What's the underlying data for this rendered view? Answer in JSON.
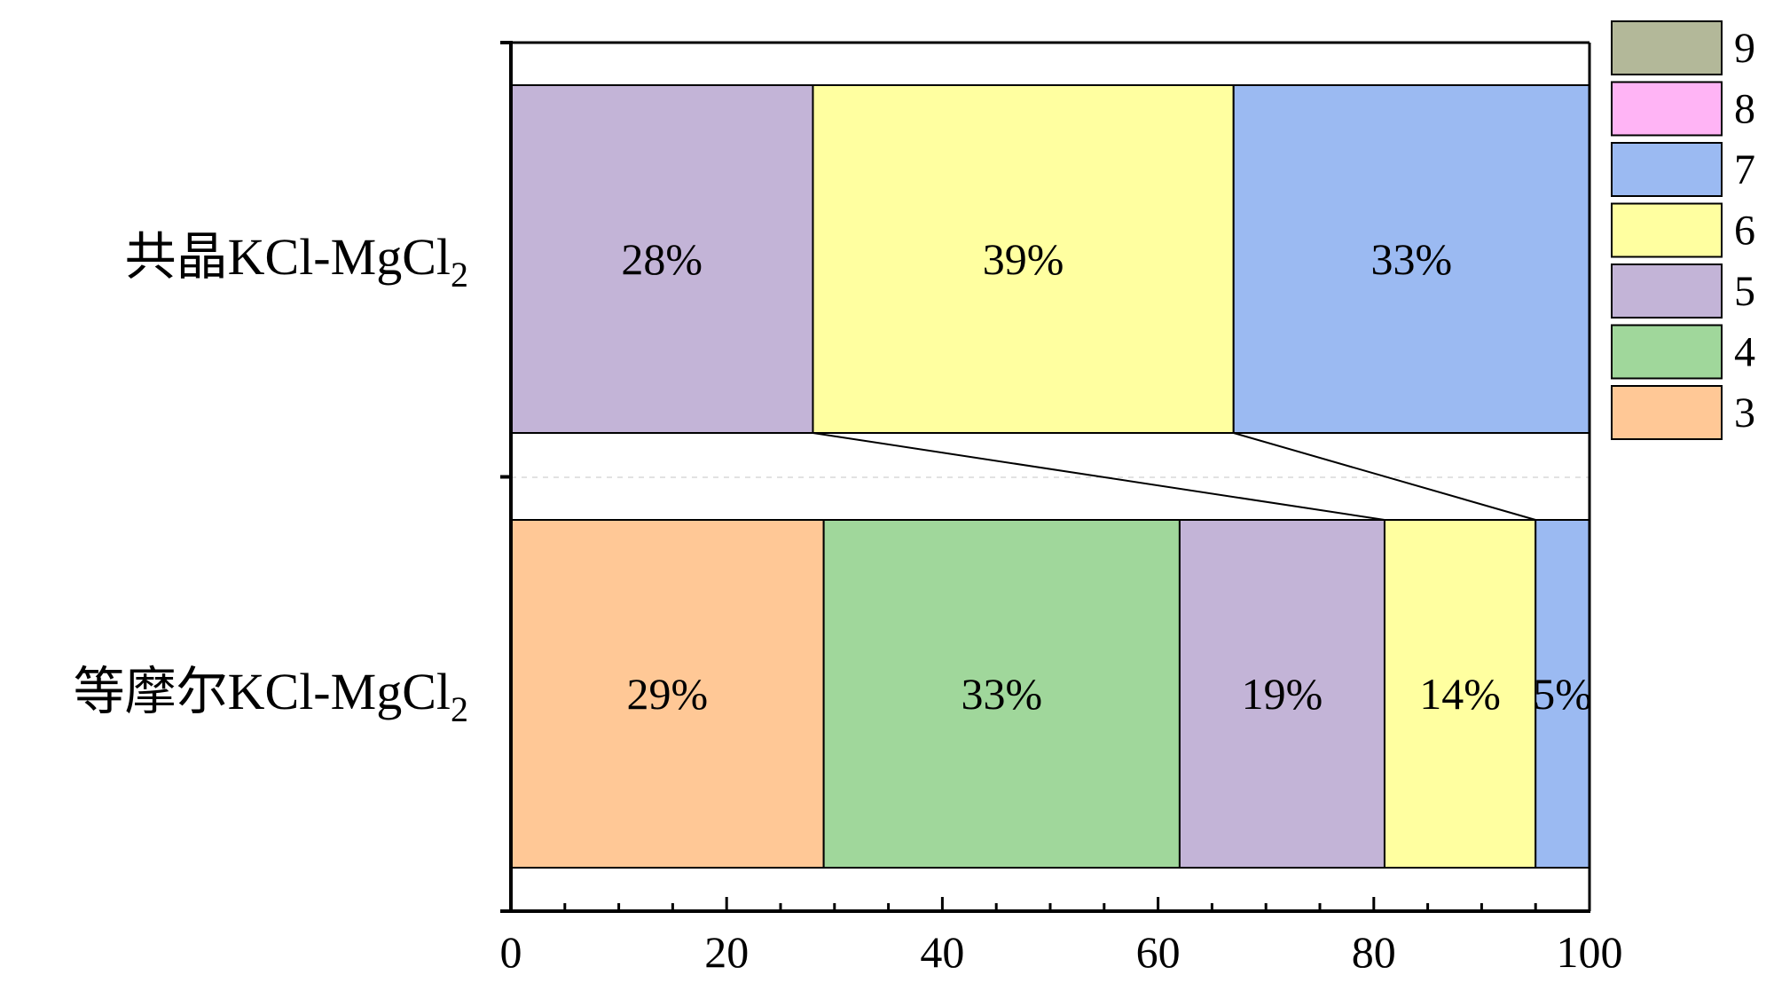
{
  "chart_data": {
    "type": "bar",
    "stacked": true,
    "orientation": "horizontal",
    "categories": [
      {
        "label": "共晶KCl-MgCl",
        "subscript": "2"
      },
      {
        "label": "等摩尔KCl-MgCl",
        "subscript": "2"
      }
    ],
    "series": [
      {
        "name": "3",
        "color": "#FFC896",
        "values": [
          0,
          29
        ]
      },
      {
        "name": "4",
        "color": "#A0D79B",
        "values": [
          0,
          33
        ]
      },
      {
        "name": "5",
        "color": "#C3B4D7",
        "values": [
          28,
          19
        ]
      },
      {
        "name": "6",
        "color": "#FFFFA0",
        "values": [
          39,
          14
        ]
      },
      {
        "name": "7",
        "color": "#9BBAF2",
        "values": [
          33,
          5
        ]
      },
      {
        "name": "8",
        "color": "#FFB4F5",
        "values": [
          0,
          0
        ]
      },
      {
        "name": "9",
        "color": "#B3B899",
        "values": [
          0,
          0
        ]
      }
    ],
    "segment_labels": [
      [
        "28%",
        "39%",
        "33%"
      ],
      [
        "29%",
        "33%",
        "19%",
        "14%",
        "5%"
      ]
    ],
    "xlim": [
      0,
      100
    ],
    "xticks": [
      "0",
      "20",
      "40",
      "60",
      "80",
      "100"
    ],
    "legend": {
      "position": "top-right",
      "order": [
        "9",
        "8",
        "7",
        "6",
        "5",
        "4",
        "3"
      ]
    },
    "connectors": true,
    "grid": false
  }
}
